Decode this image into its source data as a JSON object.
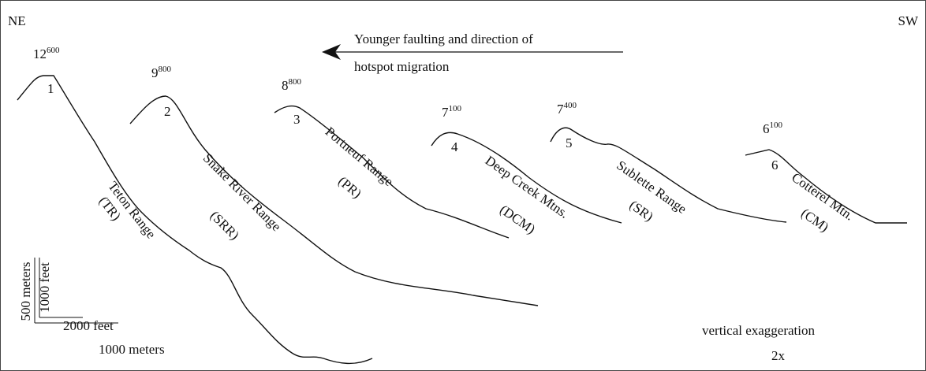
{
  "corners": {
    "left": "NE",
    "right": "SW"
  },
  "arrow_caption": [
    "Younger faulting and direction of",
    "hotspot migration"
  ],
  "ranges": [
    {
      "number": "1",
      "age": {
        "base": "12",
        "sup": "600"
      },
      "name": "Teton Range",
      "abbr": "(TR)"
    },
    {
      "number": "2",
      "age": {
        "base": "9",
        "sup": "800"
      },
      "name": "Snake River Range",
      "abbr": "(SRR)"
    },
    {
      "number": "3",
      "age": {
        "base": "8",
        "sup": "800"
      },
      "name": "Portneuf Range",
      "abbr": "(PR)"
    },
    {
      "number": "4",
      "age": {
        "base": "7",
        "sup": "100"
      },
      "name": "Deep Creek Mtns.",
      "abbr": "(DCM)"
    },
    {
      "number": "5",
      "age": {
        "base": "7",
        "sup": "400"
      },
      "name": "Sublette Range",
      "abbr": "(SR)"
    },
    {
      "number": "6",
      "age": {
        "base": "6",
        "sup": "100"
      },
      "name": "Cotterel Mtn.",
      "abbr": "(CM)"
    }
  ],
  "scale": {
    "vertical_outer": "500 meters",
    "vertical_inner": "1000 feet",
    "horizontal_inner": "2000 feet",
    "horizontal_outer": "1000 meters"
  },
  "note": [
    "vertical exaggeration",
    "2x"
  ]
}
